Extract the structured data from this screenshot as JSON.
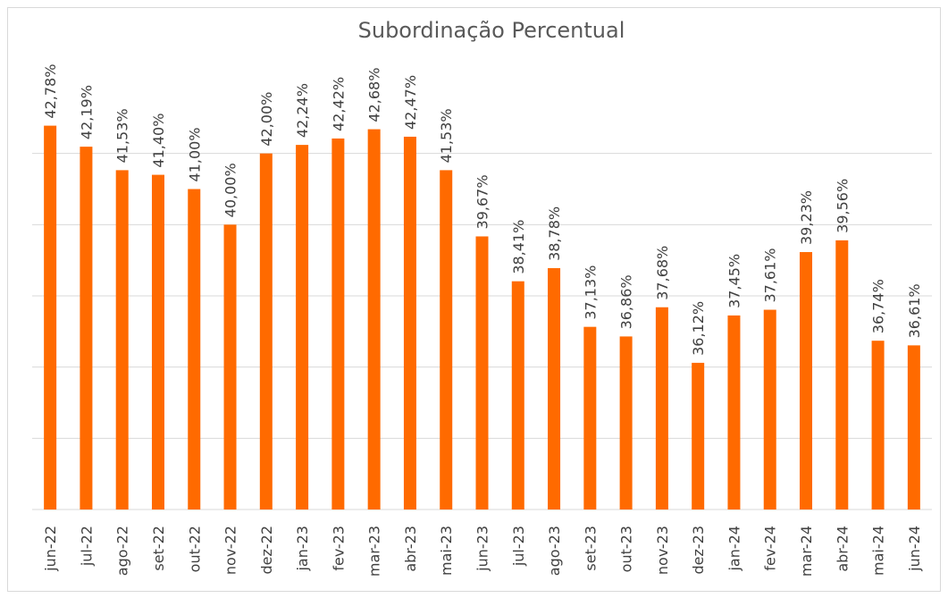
{
  "chart_data": {
    "type": "bar",
    "title": "Subordinação Percentual",
    "categories": [
      "jun-22",
      "jul-22",
      "ago-22",
      "set-22",
      "out-22",
      "nov-22",
      "dez-22",
      "jan-23",
      "fev-23",
      "mar-23",
      "abr-23",
      "mai-23",
      "jun-23",
      "jul-23",
      "ago-23",
      "set-23",
      "out-23",
      "nov-23",
      "dez-23",
      "jan-24",
      "fev-24",
      "mar-24",
      "abr-24",
      "mai-24",
      "jun-24"
    ],
    "values": [
      42.78,
      42.19,
      41.53,
      41.4,
      41.0,
      40.0,
      42.0,
      42.24,
      42.42,
      42.68,
      42.47,
      41.53,
      39.67,
      38.41,
      38.78,
      37.13,
      36.86,
      37.68,
      36.12,
      37.45,
      37.61,
      39.23,
      39.56,
      36.74,
      36.61
    ],
    "value_labels": [
      "42,78%",
      "42,19%",
      "41,53%",
      "41,40%",
      "41,00%",
      "40,00%",
      "42,00%",
      "42,24%",
      "42,42%",
      "42,68%",
      "42,47%",
      "41,53%",
      "39,67%",
      "38,41%",
      "38,78%",
      "37,13%",
      "36,86%",
      "37,68%",
      "36,12%",
      "37,45%",
      "37,61%",
      "39,23%",
      "39,56%",
      "36,74%",
      "36,61%"
    ],
    "color": "#ff6a00",
    "ylim": [
      32,
      44
    ],
    "yticks": [
      32,
      34,
      36,
      38,
      40,
      42
    ],
    "grid": true,
    "y_tick_labels": false
  }
}
